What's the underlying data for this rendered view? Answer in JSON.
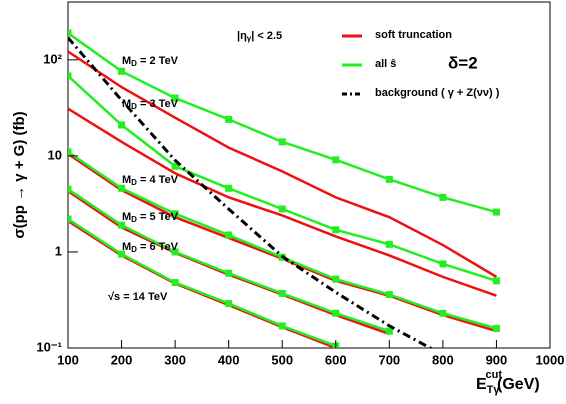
{
  "chart_data": {
    "type": "line",
    "log_y": true,
    "x_title": {
      "main": "E",
      "sub": "Tγ",
      "sup": "cut",
      "unit": "(GeV)"
    },
    "y_title": "σ(pp → γ + G)  (fb)",
    "annotations": {
      "eta_cut": "|η",
      "eta_sub": "γ",
      "eta_rest": "| < 2.5",
      "delta": "δ=2",
      "energy": "√s = 14 TeV"
    },
    "legend": [
      {
        "name": "soft truncation",
        "color": "#ee1111",
        "dash": "solid"
      },
      {
        "name": "all ŝ",
        "color": "#22ee22",
        "dash": "solid"
      },
      {
        "name": "background ( γ + Z(νν) )",
        "color": "#000000",
        "dash": "dashdot"
      }
    ],
    "x": [
      100,
      200,
      300,
      400,
      500,
      600,
      700,
      800,
      900
    ],
    "curves": [
      {
        "label": {
          "symbol": "M",
          "subscript": "D",
          "text": " = 2 TeV"
        },
        "soft": [
          122,
          52,
          25,
          12.2,
          6.9,
          3.7,
          2.3,
          1.18,
          0.55
        ],
        "all": [
          190,
          76,
          40,
          24,
          14,
          9.1,
          5.7,
          3.7,
          2.6
        ]
      },
      {
        "label": {
          "symbol": "M",
          "subscript": "D",
          "text": " = 3 TeV"
        },
        "soft": [
          31,
          14,
          6.6,
          3.7,
          2.4,
          1.45,
          0.92,
          0.55,
          0.35
        ],
        "all": [
          68,
          21,
          7.8,
          4.6,
          2.8,
          1.7,
          1.2,
          0.75,
          0.5
        ]
      },
      {
        "label": {
          "symbol": "M",
          "subscript": "D",
          "text": " = 4 TeV"
        },
        "soft": [
          10.5,
          4.4,
          2.3,
          1.4,
          0.85,
          0.5,
          0.35,
          0.22,
          0.15
        ],
        "all": [
          11,
          4.6,
          2.5,
          1.5,
          0.88,
          0.52,
          0.36,
          0.23,
          0.16
        ]
      },
      {
        "label": {
          "symbol": "M",
          "subscript": "D",
          "text": " = 5 TeV"
        },
        "soft": [
          4.3,
          1.8,
          0.98,
          0.58,
          0.36,
          0.22,
          0.14,
          null,
          null
        ],
        "all": [
          4.5,
          1.9,
          1.0,
          0.6,
          0.37,
          0.23,
          0.15,
          null,
          null
        ]
      },
      {
        "label": {
          "symbol": "M",
          "subscript": "D",
          "text": " = 6 TeV"
        },
        "soft": [
          2.1,
          0.92,
          0.47,
          0.28,
          0.165,
          0.1,
          null,
          null,
          null
        ],
        "all": [
          2.2,
          0.95,
          0.48,
          0.29,
          0.17,
          0.105,
          null,
          null,
          null
        ]
      }
    ],
    "background": [
      170,
      38,
      9,
      2.8,
      0.9,
      0.38,
      0.17,
      0.085,
      null
    ],
    "xlim": [
      100,
      1000
    ],
    "xticks": [
      100,
      200,
      300,
      400,
      500,
      600,
      700,
      800,
      900,
      1000
    ],
    "ylim": [
      0.1,
      400
    ],
    "yticks": [
      {
        "value": 0.1,
        "label": "10⁻¹"
      },
      1,
      10,
      {
        "value": 100,
        "label": "10²"
      }
    ]
  }
}
